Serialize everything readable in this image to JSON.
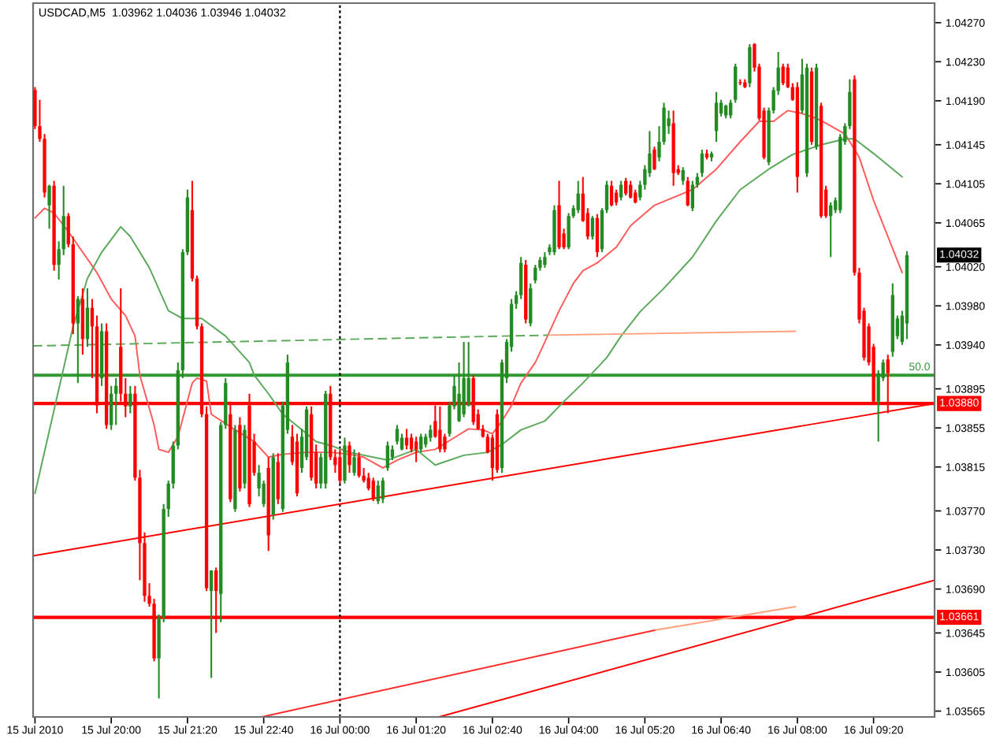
{
  "chart_data": {
    "type": "candlestick",
    "title": "USDCAD,M5  1.03962 1.04036 1.03946 1.04032",
    "x": [
      "2010-07-15T18:40",
      "2010-07-15T18:45",
      "2010-07-15T18:50",
      "2010-07-15T18:55",
      "2010-07-15T19:00",
      "2010-07-15T19:05",
      "2010-07-15T19:10",
      "2010-07-15T19:15",
      "2010-07-15T19:20",
      "2010-07-15T19:25",
      "2010-07-15T19:30",
      "2010-07-15T19:35",
      "2010-07-15T19:40",
      "2010-07-15T19:45",
      "2010-07-15T19:50",
      "2010-07-15T19:55",
      "2010-07-15T20:00",
      "2010-07-15T20:05",
      "2010-07-15T20:10",
      "2010-07-15T20:15",
      "2010-07-15T20:20",
      "2010-07-15T20:25",
      "2010-07-15T20:30",
      "2010-07-15T20:35",
      "2010-07-15T20:40",
      "2010-07-15T20:45",
      "2010-07-15T20:50",
      "2010-07-15T20:55",
      "2010-07-15T21:00",
      "2010-07-15T21:05",
      "2010-07-15T21:10",
      "2010-07-15T21:15",
      "2010-07-15T21:20",
      "2010-07-15T21:25",
      "2010-07-15T21:30",
      "2010-07-15T21:35",
      "2010-07-15T21:40",
      "2010-07-15T21:45",
      "2010-07-15T21:50",
      "2010-07-15T21:55",
      "2010-07-15T22:00",
      "2010-07-15T22:05",
      "2010-07-15T22:10",
      "2010-07-15T22:15",
      "2010-07-15T22:20",
      "2010-07-15T22:25",
      "2010-07-15T22:30",
      "2010-07-15T22:35",
      "2010-07-15T22:40",
      "2010-07-15T22:45",
      "2010-07-15T22:50",
      "2010-07-15T22:55",
      "2010-07-15T23:00",
      "2010-07-15T23:05",
      "2010-07-15T23:10",
      "2010-07-15T23:15",
      "2010-07-15T23:20",
      "2010-07-15T23:25",
      "2010-07-15T23:30",
      "2010-07-15T23:35",
      "2010-07-15T23:40",
      "2010-07-15T23:45",
      "2010-07-15T23:50",
      "2010-07-15T23:55",
      "2010-07-16T00:00",
      "2010-07-16T00:05",
      "2010-07-16T00:10",
      "2010-07-16T00:15",
      "2010-07-16T00:20",
      "2010-07-16T00:25",
      "2010-07-16T00:30",
      "2010-07-16T00:35",
      "2010-07-16T00:40",
      "2010-07-16T00:45",
      "2010-07-16T00:50",
      "2010-07-16T00:55",
      "2010-07-16T01:00",
      "2010-07-16T01:05",
      "2010-07-16T01:10",
      "2010-07-16T01:15",
      "2010-07-16T01:20",
      "2010-07-16T01:25",
      "2010-07-16T01:30",
      "2010-07-16T01:35",
      "2010-07-16T01:40",
      "2010-07-16T01:45",
      "2010-07-16T01:50",
      "2010-07-16T01:55",
      "2010-07-16T02:00",
      "2010-07-16T02:05",
      "2010-07-16T02:10",
      "2010-07-16T02:15",
      "2010-07-16T02:20",
      "2010-07-16T02:25",
      "2010-07-16T02:30",
      "2010-07-16T02:35",
      "2010-07-16T02:40",
      "2010-07-16T02:45",
      "2010-07-16T02:50",
      "2010-07-16T02:55",
      "2010-07-16T03:00",
      "2010-07-16T03:05",
      "2010-07-16T03:10",
      "2010-07-16T03:15",
      "2010-07-16T03:20",
      "2010-07-16T03:25",
      "2010-07-16T03:30",
      "2010-07-16T03:35",
      "2010-07-16T03:40",
      "2010-07-16T03:45",
      "2010-07-16T03:50",
      "2010-07-16T03:55",
      "2010-07-16T04:00",
      "2010-07-16T04:05",
      "2010-07-16T04:10",
      "2010-07-16T04:15",
      "2010-07-16T04:20",
      "2010-07-16T04:25",
      "2010-07-16T04:30",
      "2010-07-16T04:35",
      "2010-07-16T04:40",
      "2010-07-16T04:45",
      "2010-07-16T04:50",
      "2010-07-16T04:55",
      "2010-07-16T05:00",
      "2010-07-16T05:05",
      "2010-07-16T05:10",
      "2010-07-16T05:15",
      "2010-07-16T05:20",
      "2010-07-16T05:25",
      "2010-07-16T05:30",
      "2010-07-16T05:35",
      "2010-07-16T05:40",
      "2010-07-16T05:45",
      "2010-07-16T05:50",
      "2010-07-16T05:55",
      "2010-07-16T06:00",
      "2010-07-16T06:05",
      "2010-07-16T06:10",
      "2010-07-16T06:15",
      "2010-07-16T06:20",
      "2010-07-16T06:25",
      "2010-07-16T06:30",
      "2010-07-16T06:35",
      "2010-07-16T06:40",
      "2010-07-16T06:45",
      "2010-07-16T06:50",
      "2010-07-16T06:55",
      "2010-07-16T07:00",
      "2010-07-16T07:05",
      "2010-07-16T07:10",
      "2010-07-16T07:15",
      "2010-07-16T07:20",
      "2010-07-16T07:25",
      "2010-07-16T07:30",
      "2010-07-16T07:35",
      "2010-07-16T07:40",
      "2010-07-16T07:45",
      "2010-07-16T07:50",
      "2010-07-16T07:55",
      "2010-07-16T08:00",
      "2010-07-16T08:05",
      "2010-07-16T08:10",
      "2010-07-16T08:15",
      "2010-07-16T08:20",
      "2010-07-16T08:25",
      "2010-07-16T08:30",
      "2010-07-16T08:35",
      "2010-07-16T08:40",
      "2010-07-16T08:45",
      "2010-07-16T08:50",
      "2010-07-16T08:55",
      "2010-07-16T09:00",
      "2010-07-16T09:05",
      "2010-07-16T09:10",
      "2010-07-16T09:15",
      "2010-07-16T09:20",
      "2010-07-16T09:25",
      "2010-07-16T09:30",
      "2010-07-16T09:35",
      "2010-07-16T09:40",
      "2010-07-16T09:45",
      "2010-07-16T09:50",
      "2010-07-16T09:55"
    ],
    "ohlc": [
      [
        1.04201,
        1.04204,
        1.04161,
        1.04164
      ],
      [
        1.04164,
        1.04191,
        1.04148,
        1.04151
      ],
      [
        1.04151,
        1.04156,
        1.04091,
        1.04096
      ],
      [
        1.04083,
        1.04104,
        1.04059,
        1.04103
      ],
      [
        1.04103,
        1.04108,
        1.04016,
        1.04022
      ],
      [
        1.04022,
        1.04046,
        1.04007,
        1.04038
      ],
      [
        1.04038,
        1.04103,
        1.04032,
        1.04072
      ],
      [
        1.04072,
        1.04075,
        1.0404,
        1.04043
      ],
      [
        1.04043,
        1.04051,
        1.03951,
        1.03962
      ],
      [
        1.03962,
        1.0399,
        1.03901,
        1.03987
      ],
      [
        1.03987,
        1.03998,
        1.0393,
        1.03946
      ],
      [
        1.03946,
        1.03998,
        1.03938,
        1.03978
      ],
      [
        1.03978,
        1.03987,
        1.03906,
        1.03959
      ],
      [
        1.03959,
        1.0397,
        1.0387,
        1.03878
      ],
      [
        1.03906,
        1.03962,
        1.03898,
        1.03954
      ],
      [
        1.03954,
        1.03962,
        1.03854,
        1.03858
      ],
      [
        1.03858,
        1.03898,
        1.03853,
        1.0389
      ],
      [
        1.0389,
        1.03906,
        1.03858,
        1.03898
      ],
      [
        1.03938,
        1.03998,
        1.03882,
        1.0389
      ],
      [
        1.0389,
        1.03906,
        1.03866,
        1.03877
      ],
      [
        1.03877,
        1.03898,
        1.0387,
        1.0389
      ],
      [
        1.0389,
        1.03898,
        1.03801,
        1.03804
      ],
      [
        1.03804,
        1.03812,
        1.03699,
        1.03737
      ],
      [
        1.03737,
        1.03748,
        1.03677,
        1.03683
      ],
      [
        1.03683,
        1.03696,
        1.03672,
        1.03675
      ],
      [
        1.03675,
        1.0368,
        1.03616,
        1.03619
      ],
      [
        1.03619,
        1.03664,
        1.03578,
        1.03661
      ],
      [
        1.03661,
        1.03777,
        1.03656,
        1.03772
      ],
      [
        1.03772,
        1.03801,
        1.03764,
        1.03798
      ],
      [
        1.03798,
        1.03841,
        1.03793,
        1.03837
      ],
      [
        1.03837,
        1.03922,
        1.03833,
        1.03914
      ],
      [
        1.03914,
        1.04038,
        1.03906,
        1.04035
      ],
      [
        1.04035,
        1.04099,
        1.04032,
        1.04091
      ],
      [
        1.04078,
        1.04108,
        1.04005,
        1.04008
      ],
      [
        1.04008,
        1.04011,
        1.03956,
        1.03959
      ],
      [
        1.03959,
        1.03962,
        1.03866,
        1.03869
      ],
      [
        1.03869,
        1.03877,
        1.03688,
        1.03691
      ],
      [
        1.03688,
        1.03709,
        1.03599,
        1.03709
      ],
      [
        1.03709,
        1.03712,
        1.03645,
        1.03688
      ],
      [
        1.03685,
        1.03861,
        1.03656,
        1.03858
      ],
      [
        1.03858,
        1.03906,
        1.03854,
        1.03901
      ],
      [
        1.03869,
        1.03882,
        1.03779,
        1.03782
      ],
      [
        1.03772,
        1.03858,
        1.03769,
        1.03853
      ],
      [
        1.03858,
        1.03866,
        1.0379,
        1.03793
      ],
      [
        1.03798,
        1.03858,
        1.03793,
        1.03853
      ],
      [
        1.03878,
        1.0389,
        1.03774,
        1.03777
      ],
      [
        1.03841,
        1.03849,
        1.03806,
        1.03809
      ],
      [
        1.03793,
        1.03817,
        1.03785,
        1.03809
      ],
      [
        1.03777,
        1.03801,
        1.03774,
        1.03798
      ],
      [
        1.03814,
        1.03825,
        1.03729,
        1.03745
      ],
      [
        1.03766,
        1.03829,
        1.03761,
        1.03825
      ],
      [
        1.0382,
        1.03829,
        1.03777,
        1.03782
      ],
      [
        1.03772,
        1.03882,
        1.03769,
        1.03878
      ],
      [
        1.03853,
        1.0393,
        1.03849,
        1.03922
      ],
      [
        1.03846,
        1.03858,
        1.03817,
        1.0382
      ],
      [
        1.03841,
        1.03849,
        1.03785,
        1.03788
      ],
      [
        1.03814,
        1.03854,
        1.03809,
        1.03846
      ],
      [
        1.03825,
        1.03877,
        1.03822,
        1.03874
      ],
      [
        1.03869,
        1.03877,
        1.03801,
        1.03804
      ],
      [
        1.0383,
        1.03838,
        1.03793,
        1.03798
      ],
      [
        1.03798,
        1.03829,
        1.03793,
        1.03825
      ],
      [
        1.03798,
        1.03893,
        1.03793,
        1.0389
      ],
      [
        1.0389,
        1.03898,
        1.03822,
        1.03825
      ],
      [
        1.03825,
        1.03833,
        1.03809,
        1.03817
      ],
      [
        1.03825,
        1.03833,
        1.03798,
        1.03801
      ],
      [
        1.03801,
        1.03845,
        1.03798,
        1.03837
      ],
      [
        1.03837,
        1.03841,
        1.03809,
        1.03817
      ],
      [
        1.03809,
        1.03833,
        1.03806,
        1.03825
      ],
      [
        1.03825,
        1.0383,
        1.03804,
        1.03806
      ],
      [
        1.03806,
        1.03814,
        1.03799,
        1.03801
      ],
      [
        1.03804,
        1.03809,
        1.03791,
        1.03793
      ],
      [
        1.03801,
        1.03804,
        1.0378,
        1.03782
      ],
      [
        1.0378,
        1.03801,
        1.03777,
        1.03796
      ],
      [
        1.03782,
        1.03804,
        1.03778,
        1.03801
      ],
      [
        1.03814,
        1.03841,
        1.03811,
        1.03837
      ],
      [
        1.03825,
        1.03837,
        1.03822,
        1.03833
      ],
      [
        1.03841,
        1.03858,
        1.03838,
        1.03854
      ],
      [
        1.03833,
        1.03849,
        1.03832,
        1.03845
      ],
      [
        1.03845,
        1.03854,
        1.03833,
        1.03837
      ],
      [
        1.03845,
        1.03849,
        1.0383,
        1.03833
      ],
      [
        1.03841,
        1.03846,
        1.0382,
        1.03833
      ],
      [
        1.03833,
        1.03849,
        1.0383,
        1.03846
      ],
      [
        1.03838,
        1.03849,
        1.03835,
        1.03846
      ],
      [
        1.03845,
        1.03858,
        1.03841,
        1.03853
      ],
      [
        1.03862,
        1.03878,
        1.03845,
        1.03846
      ],
      [
        1.03853,
        1.03877,
        1.0383,
        1.03833
      ],
      [
        1.03846,
        1.03849,
        1.0383,
        1.03833
      ],
      [
        1.03849,
        1.03882,
        1.03846,
        1.03878
      ],
      [
        1.03877,
        1.03909,
        1.03874,
        1.03898
      ],
      [
        1.03862,
        1.03922,
        1.03861,
        1.0389
      ],
      [
        1.03869,
        1.03943,
        1.03866,
        1.03906
      ],
      [
        1.03878,
        1.03943,
        1.03877,
        1.03906
      ],
      [
        1.03906,
        1.03909,
        1.03858,
        1.03861
      ],
      [
        1.03869,
        1.03874,
        1.03853,
        1.03854
      ],
      [
        1.03854,
        1.03858,
        1.03845,
        1.03846
      ],
      [
        1.03846,
        1.03849,
        1.03829,
        1.0383
      ],
      [
        1.03845,
        1.03848,
        1.03801,
        1.03814
      ],
      [
        1.03869,
        1.03874,
        1.03809,
        1.03812
      ],
      [
        1.03814,
        1.03925,
        1.03809,
        1.03922
      ],
      [
        1.03906,
        1.03946,
        1.03901,
        1.03943
      ],
      [
        1.03938,
        1.03987,
        1.03933,
        1.03982
      ],
      [
        1.03982,
        1.03995,
        1.03977,
        1.03991
      ],
      [
        1.03991,
        1.0403,
        1.03987,
        1.04024
      ],
      [
        1.04022,
        1.04027,
        1.03962,
        1.03966
      ],
      [
        1.03962,
        1.04003,
        1.03959,
        1.03998
      ],
      [
        1.04006,
        1.04022,
        1.04003,
        1.04019
      ],
      [
        1.04019,
        1.0403,
        1.04016,
        1.04027
      ],
      [
        1.04022,
        1.04035,
        1.04019,
        1.0403
      ],
      [
        1.04035,
        1.04043,
        1.04032,
        1.0404
      ],
      [
        1.04035,
        1.04083,
        1.04032,
        1.04078
      ],
      [
        1.04083,
        1.04108,
        1.04038,
        1.0404
      ],
      [
        1.04054,
        1.04059,
        1.04038,
        1.0404
      ],
      [
        1.0404,
        1.04075,
        1.04038,
        1.04072
      ],
      [
        1.04072,
        1.04083,
        1.0407,
        1.0408
      ],
      [
        1.04078,
        1.04108,
        1.04075,
        1.04095
      ],
      [
        1.04095,
        1.04112,
        1.04066,
        1.04067
      ],
      [
        1.04075,
        1.0408,
        1.04048,
        1.04051
      ],
      [
        1.04051,
        1.04072,
        1.04048,
        1.0407
      ],
      [
        1.0407,
        1.04074,
        1.0403,
        1.04035
      ],
      [
        1.04038,
        1.0408,
        1.04035,
        1.04078
      ],
      [
        1.04078,
        1.04108,
        1.04075,
        1.04104
      ],
      [
        1.04103,
        1.04108,
        1.04082,
        1.04083
      ],
      [
        1.04096,
        1.04099,
        1.04083,
        1.04086
      ],
      [
        1.04091,
        1.04108,
        1.04088,
        1.04104
      ],
      [
        1.04108,
        1.04111,
        1.04093,
        1.04095
      ],
      [
        1.04104,
        1.04108,
        1.0409,
        1.04091
      ],
      [
        1.04096,
        1.04099,
        1.04085,
        1.04086
      ],
      [
        1.04091,
        1.04108,
        1.04088,
        1.04104
      ],
      [
        1.04104,
        1.04124,
        1.04099,
        1.0412
      ],
      [
        1.04116,
        1.04159,
        1.04112,
        1.04136
      ],
      [
        1.0414,
        1.04143,
        1.04119,
        1.0412
      ],
      [
        1.04132,
        1.04164,
        1.04128,
        1.04148
      ],
      [
        1.04148,
        1.04188,
        1.04145,
        1.04183
      ],
      [
        1.04164,
        1.0418,
        1.04156,
        1.04172
      ],
      [
        1.04167,
        1.0418,
        1.04103,
        1.04116
      ],
      [
        1.0412,
        1.04124,
        1.04114,
        1.04116
      ],
      [
        1.04108,
        1.04122,
        1.04104,
        1.04119
      ],
      [
        1.04108,
        1.04112,
        1.04082,
        1.04083
      ],
      [
        1.0408,
        1.04108,
        1.04077,
        1.04104
      ],
      [
        1.04104,
        1.04116,
        1.04101,
        1.04112
      ],
      [
        1.04116,
        1.0414,
        1.04112,
        1.04136
      ],
      [
        1.04136,
        1.0414,
        1.0413,
        1.04132
      ],
      [
        1.04132,
        1.04138,
        1.04128,
        1.04136
      ],
      [
        1.04159,
        1.04199,
        1.04148,
        1.04188
      ],
      [
        1.04177,
        1.04191,
        1.04174,
        1.04188
      ],
      [
        1.04175,
        1.04186,
        1.04172,
        1.04185
      ],
      [
        1.04175,
        1.04191,
        1.04172,
        1.04188
      ],
      [
        1.04191,
        1.04228,
        1.04188,
        1.04225
      ],
      [
        1.04209,
        1.04212,
        1.04206,
        1.04208
      ],
      [
        1.04209,
        1.04212,
        1.04203,
        1.04204
      ],
      [
        1.04208,
        1.04248,
        1.04204,
        1.04245
      ],
      [
        1.04248,
        1.04249,
        1.0422,
        1.04224
      ],
      [
        1.04225,
        1.04228,
        1.0417,
        1.04172
      ],
      [
        1.0418,
        1.04183,
        1.0413,
        1.04132
      ],
      [
        1.04127,
        1.04183,
        1.04124,
        1.0418
      ],
      [
        1.0418,
        1.04204,
        1.04177,
        1.04201
      ],
      [
        1.042,
        1.0424,
        1.04196,
        1.04224
      ],
      [
        1.04225,
        1.04228,
        1.04206,
        1.04208
      ],
      [
        1.04224,
        1.04228,
        1.04203,
        1.04204
      ],
      [
        1.04204,
        1.04208,
        1.0419,
        1.04191
      ],
      [
        1.04204,
        1.04209,
        1.04096,
        1.04112
      ],
      [
        1.0418,
        1.04233,
        1.04177,
        1.04217
      ],
      [
        1.04116,
        1.04228,
        1.04112,
        1.04224
      ],
      [
        1.0422,
        1.04224,
        1.04145,
        1.04148
      ],
      [
        1.04143,
        1.04228,
        1.0414,
        1.04224
      ],
      [
        1.04185,
        1.04188,
        1.0407,
        1.04072
      ],
      [
        1.04099,
        1.04103,
        1.0407,
        1.04072
      ],
      [
        1.04072,
        1.04086,
        1.0403,
        1.04083
      ],
      [
        1.04078,
        1.04091,
        1.04075,
        1.04088
      ],
      [
        1.04078,
        1.04156,
        1.04075,
        1.04153
      ],
      [
        1.04148,
        1.04167,
        1.04145,
        1.04164
      ],
      [
        1.04164,
        1.04212,
        1.04161,
        1.04199
      ],
      [
        1.04212,
        1.04216,
        1.04011,
        1.04014
      ],
      [
        1.04014,
        1.04019,
        1.03962,
        1.03966
      ],
      [
        1.03975,
        1.03978,
        1.03924,
        1.03927
      ],
      [
        1.03959,
        1.03962,
        1.03919,
        1.03922
      ],
      [
        1.03938,
        1.03941,
        1.0388,
        1.03882
      ],
      [
        1.03882,
        1.03914,
        1.03841,
        1.03911
      ],
      [
        1.03906,
        1.03925,
        1.03903,
        1.03922
      ],
      [
        1.03925,
        1.0393,
        1.0387,
        1.03911
      ],
      [
        1.03933,
        1.04003,
        1.03928,
        1.03991
      ],
      [
        1.03949,
        1.0397,
        1.03946,
        1.03967
      ],
      [
        1.03943,
        1.03975,
        1.0394,
        1.0397
      ],
      [
        1.03962,
        1.04036,
        1.03946,
        1.04032
      ]
    ],
    "colors": [
      "#ff0000",
      "#ff0000",
      "#ff0000",
      "#228b22",
      "#ff0000",
      "#228b22",
      "#228b22",
      "#ff0000",
      "#ff0000",
      "#228b22",
      "#ff0000",
      "#228b22",
      "#ff0000",
      "#ff0000",
      "#228b22",
      "#ff0000",
      "#228b22",
      "#228b22",
      "#ff0000",
      "#ff0000",
      "#228b22",
      "#ff0000",
      "#ff0000",
      "#ff0000",
      "#ff0000",
      "#ff0000",
      "#228b22",
      "#228b22",
      "#228b22",
      "#228b22",
      "#228b22",
      "#228b22",
      "#228b22",
      "#ff0000",
      "#ff0000",
      "#ff0000",
      "#ff0000",
      "#228b22",
      "#ff0000",
      "#228b22",
      "#228b22",
      "#ff0000",
      "#228b22",
      "#ff0000",
      "#228b22",
      "#ff0000",
      "#ff0000",
      "#228b22",
      "#228b22",
      "#ff0000",
      "#228b22",
      "#ff0000",
      "#228b22",
      "#228b22",
      "#ff0000",
      "#ff0000",
      "#228b22",
      "#228b22",
      "#ff0000",
      "#ff0000",
      "#228b22",
      "#228b22",
      "#ff0000",
      "#ff0000",
      "#ff0000",
      "#228b22",
      "#ff0000",
      "#228b22",
      "#ff0000",
      "#ff0000",
      "#ff0000",
      "#ff0000",
      "#228b22",
      "#228b22",
      "#228b22",
      "#228b22",
      "#228b22",
      "#228b22",
      "#ff0000",
      "#ff0000",
      "#ff0000",
      "#228b22",
      "#228b22",
      "#228b22",
      "#ff0000",
      "#ff0000",
      "#ff0000",
      "#228b22",
      "#228b22",
      "#228b22",
      "#228b22",
      "#228b22",
      "#ff0000",
      "#ff0000",
      "#ff0000",
      "#ff0000",
      "#ff0000",
      "#ff0000",
      "#228b22",
      "#228b22",
      "#228b22",
      "#228b22",
      "#228b22",
      "#ff0000",
      "#228b22",
      "#228b22",
      "#228b22",
      "#228b22",
      "#228b22",
      "#228b22",
      "#ff0000",
      "#ff0000",
      "#228b22",
      "#228b22",
      "#228b22",
      "#ff0000",
      "#ff0000",
      "#228b22",
      "#ff0000",
      "#228b22",
      "#228b22",
      "#ff0000",
      "#ff0000",
      "#228b22",
      "#ff0000",
      "#ff0000",
      "#ff0000",
      "#228b22",
      "#228b22",
      "#228b22",
      "#ff0000",
      "#228b22",
      "#228b22",
      "#228b22",
      "#ff0000",
      "#ff0000",
      "#228b22",
      "#ff0000",
      "#228b22",
      "#228b22",
      "#228b22",
      "#ff0000",
      "#228b22",
      "#228b22",
      "#228b22",
      "#228b22",
      "#228b22",
      "#228b22",
      "#ff0000",
      "#ff0000",
      "#228b22",
      "#ff0000",
      "#ff0000",
      "#ff0000",
      "#228b22",
      "#228b22",
      "#228b22",
      "#ff0000",
      "#ff0000",
      "#ff0000",
      "#ff0000",
      "#228b22",
      "#228b22",
      "#ff0000",
      "#228b22",
      "#ff0000",
      "#ff0000",
      "#228b22",
      "#228b22",
      "#228b22",
      "#228b22",
      "#228b22",
      "#ff0000",
      "#ff0000",
      "#ff0000",
      "#ff0000",
      "#ff0000",
      "#228b22",
      "#228b22",
      "#ff0000",
      "#228b22",
      "#228b22",
      "#228b22",
      "#228b22"
    ],
    "series": [
      {
        "type": "line",
        "color": "#ff5a5a",
        "x": [
          "2010-07-15T18:40",
          "2010-07-15T18:50",
          "2010-07-15T19:00",
          "2010-07-15T19:15",
          "2010-07-15T19:30",
          "2010-07-15T19:45",
          "2010-07-15T20:00",
          "2010-07-15T20:15",
          "2010-07-15T20:25",
          "2010-07-15T20:30",
          "2010-07-15T20:45",
          "2010-07-15T20:50",
          "2010-07-15T21:00",
          "2010-07-15T21:10",
          "2010-07-15T21:25",
          "2010-07-15T21:30",
          "2010-07-15T21:40",
          "2010-07-15T21:45",
          "2010-07-15T22:10",
          "2010-07-15T22:30",
          "2010-07-15T22:45",
          "2010-07-15T23:00",
          "2010-07-15T23:25",
          "2010-07-15T23:50",
          "2010-07-16T00:10",
          "2010-07-16T00:25",
          "2010-07-16T00:45",
          "2010-07-16T01:00",
          "2010-07-16T01:20",
          "2010-07-16T01:40",
          "2010-07-16T02:00",
          "2010-07-16T02:15",
          "2010-07-16T02:30",
          "2010-07-16T02:40",
          "2010-07-16T02:50",
          "2010-07-16T03:00",
          "2010-07-16T03:10",
          "2010-07-16T03:25",
          "2010-07-16T03:35",
          "2010-07-16T03:50",
          "2010-07-16T04:05",
          "2010-07-16T04:15",
          "2010-07-16T04:30",
          "2010-07-16T04:50",
          "2010-07-16T05:05",
          "2010-07-16T05:30",
          "2010-07-16T06:10",
          "2010-07-16T06:35",
          "2010-07-16T07:00",
          "2010-07-16T07:20",
          "2010-07-16T07:35",
          "2010-07-16T07:50",
          "2010-07-16T08:05",
          "2010-07-16T08:20",
          "2010-07-16T08:30",
          "2010-07-16T08:50",
          "2010-07-16T09:05",
          "2010-07-16T09:20",
          "2010-07-16T09:35",
          "2010-07-16T09:50"
        ],
        "values": [
          1.0407,
          1.0408,
          1.04075,
          1.04056,
          1.04035,
          1.04014,
          1.03987,
          1.0397,
          1.03949,
          1.03909,
          1.03858,
          1.03833,
          1.0383,
          1.03846,
          1.03901,
          1.03906,
          1.03903,
          1.03869,
          1.03853,
          1.03841,
          1.03825,
          1.03828,
          1.0383,
          1.0383,
          1.03828,
          1.03825,
          1.03814,
          1.03822,
          1.0383,
          1.03833,
          1.03845,
          1.03854,
          1.03853,
          1.03849,
          1.03862,
          1.03878,
          1.03901,
          1.03922,
          1.03943,
          1.03975,
          1.04003,
          1.04016,
          1.04024,
          1.0404,
          1.04062,
          1.04083,
          1.04099,
          1.0412,
          1.04148,
          1.04169,
          1.04169,
          1.0418,
          1.04177,
          1.04172,
          1.04167,
          1.04156,
          1.04132,
          1.04088,
          1.04051,
          1.04014
        ]
      },
      {
        "type": "line",
        "color": "#5aa85a",
        "x": [
          "2010-07-15T18:40",
          "2010-07-15T19:10",
          "2010-07-15T19:20",
          "2010-07-15T19:35",
          "2010-07-15T19:50",
          "2010-07-15T20:10",
          "2010-07-15T20:20",
          "2010-07-15T20:40",
          "2010-07-15T21:00",
          "2010-07-15T21:15",
          "2010-07-15T21:35",
          "2010-07-15T22:00",
          "2010-07-15T22:25",
          "2010-07-15T22:30",
          "2010-07-15T22:45",
          "2010-07-15T23:00",
          "2010-07-15T23:20",
          "2010-07-15T23:35",
          "2010-07-15T23:50",
          "2010-07-16T00:10",
          "2010-07-16T00:50",
          "2010-07-16T01:20",
          "2010-07-16T01:40",
          "2010-07-16T02:10",
          "2010-07-16T02:35",
          "2010-07-16T02:50",
          "2010-07-16T03:10",
          "2010-07-16T03:35",
          "2010-07-16T03:55",
          "2010-07-16T04:15",
          "2010-07-16T04:40",
          "2010-07-16T04:55",
          "2010-07-16T05:15",
          "2010-07-16T05:40",
          "2010-07-16T06:10",
          "2010-07-16T06:35",
          "2010-07-16T07:00",
          "2010-07-16T07:30",
          "2010-07-16T07:55",
          "2010-07-16T08:10",
          "2010-07-16T08:25",
          "2010-07-16T08:50",
          "2010-07-16T09:00",
          "2010-07-16T09:20",
          "2010-07-16T09:50"
        ],
        "values": [
          1.03788,
          1.03916,
          1.03959,
          1.04008,
          1.04035,
          1.04061,
          1.04051,
          1.04019,
          1.03975,
          1.03967,
          1.03967,
          1.03949,
          1.03922,
          1.03909,
          1.0389,
          1.03869,
          1.03853,
          1.03841,
          1.03837,
          1.0383,
          1.03822,
          1.03833,
          1.03817,
          1.03827,
          1.0383,
          1.03838,
          1.03853,
          1.03862,
          1.03882,
          1.03901,
          1.03927,
          1.03949,
          1.03974,
          1.03998,
          1.0403,
          1.04067,
          1.04099,
          1.0412,
          1.04135,
          1.0414,
          1.04145,
          1.04151,
          1.04151,
          1.04136,
          1.04112
        ]
      },
      {
        "type": "line",
        "color": "#ff0000",
        "x": [
          "2010-07-15T18:38",
          "2010-07-16T10:24"
        ],
        "values": [
          1.03724,
          1.0388
        ]
      },
      {
        "type": "line",
        "color": "#ff2a2a",
        "x": [
          "2010-07-15T22:38",
          "2010-07-16T05:31"
        ],
        "values": [
          1.03559,
          1.03648
        ]
      },
      {
        "type": "line",
        "color": "#ffa07a",
        "x": [
          "2010-07-16T05:31",
          "2010-07-16T07:58"
        ],
        "values": [
          1.03648,
          1.03672
        ]
      },
      {
        "type": "line",
        "color": "#ff0000",
        "x": [
          "2010-07-16T01:44",
          "2010-07-16T10:24"
        ],
        "values": [
          1.03559,
          1.03699
        ]
      },
      {
        "type": "line",
        "color": "#5aaa5a",
        "line_style": "dashed",
        "x": [
          "2010-07-15T18:38",
          "2010-07-16T03:39"
        ],
        "values": [
          1.03939,
          1.0395
        ]
      },
      {
        "type": "line",
        "color": "#ffa07a",
        "x": [
          "2010-07-16T03:39",
          "2010-07-16T07:58"
        ],
        "values": [
          1.0395,
          1.03954
        ]
      }
    ],
    "xlim": [
      "2010-07-15T18:38",
      "2010-07-16T10:24"
    ],
    "xticks": [
      {
        "value": "2010-07-15T18:40",
        "label": "15 Jul 2010"
      },
      {
        "value": "2010-07-15T20:00",
        "label": "15 Jul 20:00"
      },
      {
        "value": "2010-07-15T21:20",
        "label": "15 Jul 21:20"
      },
      {
        "value": "2010-07-15T22:40",
        "label": "15 Jul 22:40"
      },
      {
        "value": "2010-07-16T00:00",
        "label": "16 Jul 00:00"
      },
      {
        "value": "2010-07-16T01:20",
        "label": "16 Jul 01:20"
      },
      {
        "value": "2010-07-16T02:40",
        "label": "16 Jul 02:40"
      },
      {
        "value": "2010-07-16T04:00",
        "label": "16 Jul 04:00"
      },
      {
        "value": "2010-07-16T05:20",
        "label": "16 Jul 05:20"
      },
      {
        "value": "2010-07-16T06:40",
        "label": "16 Jul 06:40"
      },
      {
        "value": "2010-07-16T08:00",
        "label": "16 Jul 08:00"
      },
      {
        "value": "2010-07-16T09:20",
        "label": "16 Jul 09:20"
      }
    ],
    "ylim": [
      1.03559,
      1.0429
    ],
    "yticks": [
      {
        "value": 1.0427,
        "label": "1.04270"
      },
      {
        "value": 1.0423,
        "label": "1.04230"
      },
      {
        "value": 1.0419,
        "label": "1.04190"
      },
      1.04145,
      1.04105,
      1.04065,
      {
        "value": 1.0402,
        "label": "1.04020"
      },
      {
        "value": 1.0398,
        "label": "1.03980"
      },
      {
        "value": 1.0394,
        "label": "1.03940"
      },
      1.03895,
      1.03855,
      1.03815,
      {
        "value": 1.0377,
        "label": "1.03770"
      },
      {
        "value": 1.0373,
        "label": "1.03730"
      },
      {
        "value": 1.0369,
        "label": "1.03690"
      },
      1.03645,
      1.03605,
      1.03565
    ],
    "ref_lines": [
      {
        "axis": "y",
        "value": 1.03909,
        "color": "#339933"
      },
      {
        "axis": "y",
        "value": 1.0388,
        "label": "1.03880",
        "color": "#ff0000"
      },
      {
        "axis": "y",
        "value": 1.03661,
        "label": "1.03661",
        "color": "#ff0000"
      },
      {
        "axis": "x",
        "value": "2010-07-16T00:00",
        "color": "#000000",
        "line_style": "dotted"
      }
    ],
    "annotations": [
      {
        "text": "50.0",
        "x": "2010-07-16T10:24",
        "y": 1.03909
      },
      {
        "text": "1.04032",
        "y": 1.04032
      }
    ]
  }
}
